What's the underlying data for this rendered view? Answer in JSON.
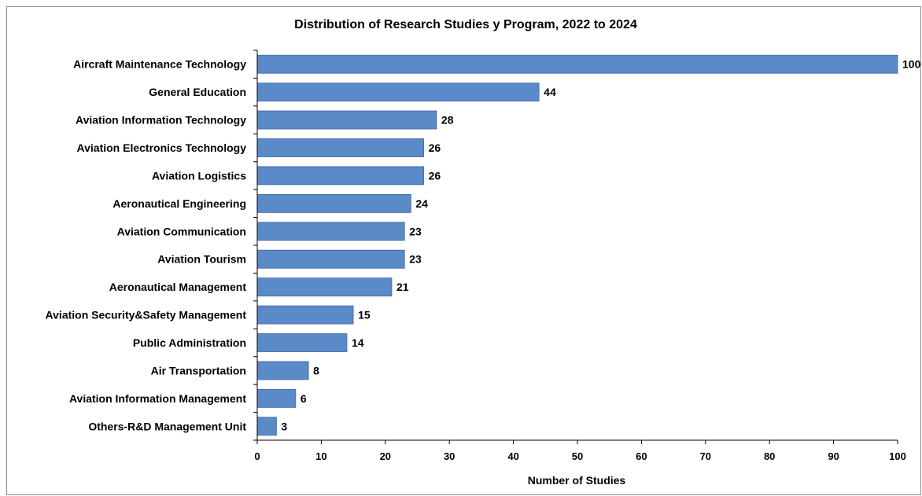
{
  "chart_data": {
    "type": "bar",
    "orientation": "horizontal",
    "title": "Distribution of Research Studies y Program, 2022 to 2024",
    "xlabel": "Number of Studies",
    "ylabel": "",
    "xlim": [
      0,
      100
    ],
    "xticks": [
      0,
      10,
      20,
      30,
      40,
      50,
      60,
      70,
      80,
      90,
      100
    ],
    "grid": false,
    "legend": "none",
    "bar_color": "#5b8ac8",
    "categories": [
      "Aircraft Maintenance Technology",
      "General Education",
      "Aviation Information Technology",
      "Aviation Electronics Technology",
      "Aviation Logistics",
      "Aeronautical Engineering",
      "Aviation Communication",
      "Aviation Tourism",
      "Aeronautical Management",
      "Aviation Security&Safety Management",
      "Public Administration",
      "Air Transportation",
      "Aviation Information Management",
      "Others-R&D Management Unit"
    ],
    "values": [
      100,
      44,
      28,
      26,
      26,
      24,
      23,
      23,
      21,
      15,
      14,
      8,
      6,
      3
    ]
  }
}
